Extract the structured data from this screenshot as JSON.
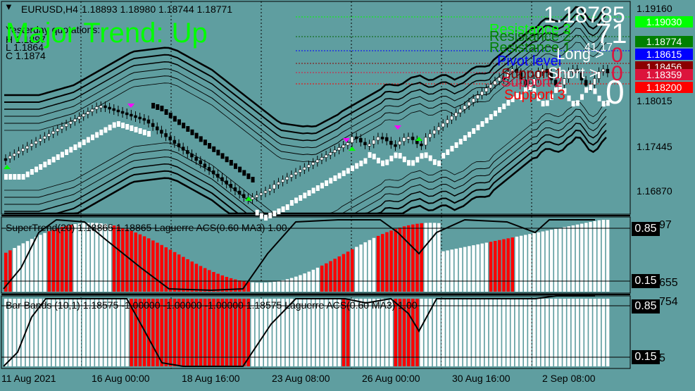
{
  "header": {
    "symbol": "EURUSD,H4",
    "ohlc": "1.18893 1.18980 1.18744 1.18771",
    "yesterday_label": "Yesterday quotations:",
    "h_value": "H 1.1897",
    "l_value": "L 1.1864",
    "c_value": "C 1.1874"
  },
  "overlay": {
    "trend_text": "Major Trend: Up",
    "big_price": "1.18785",
    "big_number": "71",
    "small_numbers": "41 17",
    "big_zero": "0",
    "resistance3": "Resistance 3",
    "resistance2": "Resistance 2",
    "resistance1": "Resistance 1",
    "pivot": "Pivot level",
    "support1": "Support 1",
    "support2": "Support 2",
    "support3": "Support 3",
    "long_label": "Long >",
    "long_value": "0",
    "short_label": "Short >",
    "short_value": "0"
  },
  "price_axis": {
    "labels": [
      "1.19160",
      "1.18015",
      "1.17445",
      "1.16870"
    ],
    "boxes": [
      {
        "text": "1.19030",
        "bg": "#00ff00",
        "fg": "#ffffff"
      },
      {
        "text": "1.18774",
        "bg": "#008000",
        "fg": "#ffffff"
      },
      {
        "text": "1.18615",
        "bg": "#0000ff",
        "fg": "#ffffff"
      },
      {
        "text": "1.18456",
        "bg": "#8b0000",
        "fg": "#ffffff"
      },
      {
        "text": "1.18359",
        "bg": "#dc143c",
        "fg": "#ffffff"
      },
      {
        "text": "1.18200",
        "bg": "#ff0000",
        "fg": "#ffffff"
      }
    ]
  },
  "indicator1": {
    "title": "SuperTrend(20) 1.18865 1.18865  Laguerre ACS(0.60 MA3) 1.00",
    "level_high": "0.85",
    "level_low": "0.15",
    "axis_top": "97",
    "axis_bottom": "655"
  },
  "indicator2": {
    "title": "Bar Bands (10,1) 1.18575 -1.00000 -1.00000 -1.00000 1.18575  Laguerre ACS(0.60 MA3) 1.00",
    "level_high": "0.85",
    "level_low": "0.15",
    "axis_top": "754",
    "axis_bottom": "5"
  },
  "time_axis": [
    "11 Aug 2021",
    "16 Aug 00:00",
    "18 Aug 16:00",
    "23 Aug 08:00",
    "26 Aug 00:00",
    "30 Aug 16:00",
    "2 Sep 08:00"
  ],
  "colors": {
    "background": "#5f9ea0",
    "bull": "#ffffff",
    "bear": "#000000",
    "red_bar": "#ff0000",
    "arrow_up": "#00ff00",
    "arrow_down": "#ff00ff",
    "trend_text": "#00ff00"
  }
}
